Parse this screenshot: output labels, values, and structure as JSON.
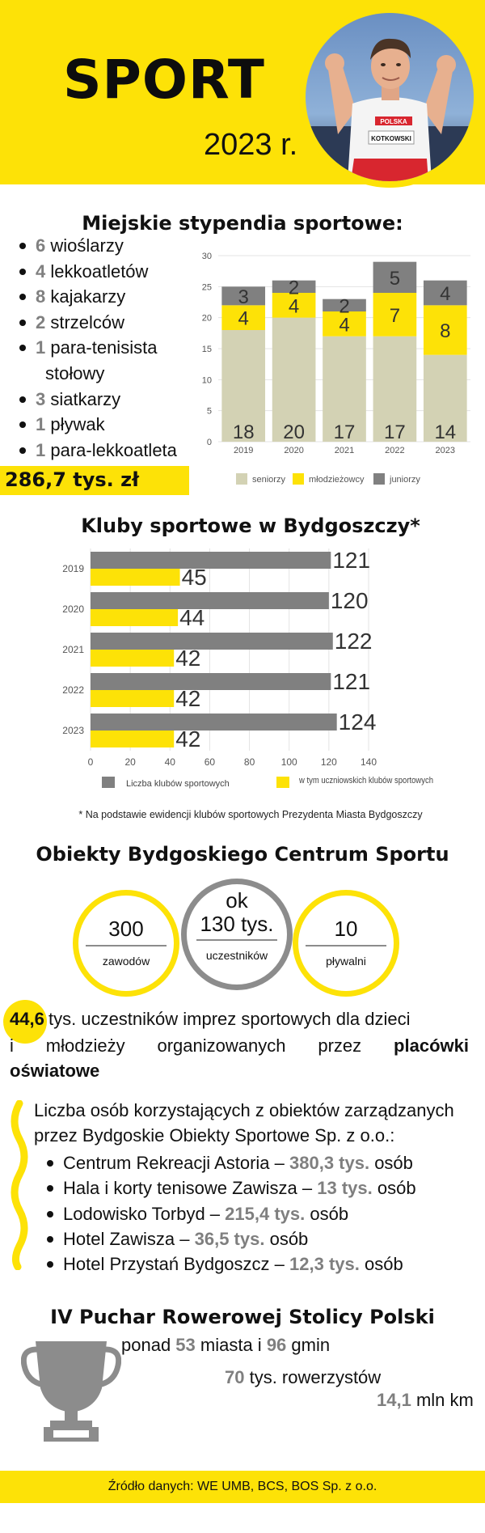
{
  "header": {
    "title": "SPORT",
    "year": "2023 r.",
    "photo_bib": "KOTKOWSKI",
    "photo_shirt": "POLSKA"
  },
  "scholarships": {
    "title": "Miejskie stypendia sportowe:",
    "items": [
      {
        "num": "6",
        "text": " wioślarzy"
      },
      {
        "num": "4",
        "text": " lekkoatletów"
      },
      {
        "num": "8",
        "text": " kajakarzy"
      },
      {
        "num": "2",
        "text": " strzelców"
      },
      {
        "num": "1",
        "text": " para-tenisista",
        "text2": "stołowy"
      },
      {
        "num": "3",
        "text": " siatkarzy"
      },
      {
        "num": "1",
        "text": " pływak"
      },
      {
        "num": "1",
        "text": " para-lekkoatleta"
      }
    ],
    "amount": "286,7 tys. zł"
  },
  "clubs": {
    "title": "Kluby sportowe w Bydgoszczy*",
    "footnote": "* Na podstawie ewidencji klubów sportowych Prezydenta Miasta Bydgoszczy"
  },
  "bob": {
    "title": "Obiekty Bydgoskiego Centrum Sportu",
    "circles": [
      {
        "prefix": "",
        "value": "300",
        "label": "zawodów"
      },
      {
        "prefix": "ok",
        "value": "130 tys.",
        "label": "uczestników"
      },
      {
        "prefix": "",
        "value": "10",
        "label": "pływalni"
      }
    ],
    "participants_num": "44,6",
    "participants_line1": " tys. uczestników  imprez  sportowych dla  dzieci",
    "participants_line2_a": "i",
    "participants_line2_b": "młodzieży",
    "participants_line2_c": "organizowanych",
    "participants_line2_d": "przez",
    "participants_line2_e": "placówki",
    "participants_line3": "oświatowe"
  },
  "bos": {
    "intro_1": "Liczba osób korzystających z obiektów zarządzanych",
    "intro_2": "przez Bydgoskie Obiekty Sportowe Sp. z o.o.:",
    "items": [
      {
        "name": "Centrum Rekreacji Astoria – ",
        "value": "380,3 tys.",
        "unit": " osób"
      },
      {
        "name": "Hala i korty tenisowe Zawisza – ",
        "value": "13 tys.",
        "unit": " osób"
      },
      {
        "name": "Lodowisko Torbyd – ",
        "value": "215,4 tys.",
        "unit": " osób"
      },
      {
        "name": "Hotel Zawisza – ",
        "value": "36,5 tys.",
        "unit": " osób"
      },
      {
        "name": "Hotel Przystań Bydgoszcz – ",
        "value": "12,3 tys.",
        "unit": " osób"
      }
    ]
  },
  "cup": {
    "title": "IV Puchar Rowerowej Stolicy Polski",
    "line1_a": "ponad ",
    "line1_n1": "53",
    "line1_b": " miasta i ",
    "line1_n2": "96",
    "line1_c": " gmin",
    "line2_n": "70",
    "line2_t": " tys. rowerzystów",
    "line3_n": "14,1",
    "line3_t": " mln km"
  },
  "footer": {
    "source": "Źródło danych: WE UMB, BCS, BOS Sp. z o.o."
  },
  "colors": {
    "yellow": "#fde207",
    "gray": "#808080",
    "beige": "#d3d2b4",
    "dark": "#111111"
  },
  "chart_data": [
    {
      "type": "bar",
      "stacked": true,
      "categories": [
        "2019",
        "2020",
        "2021",
        "2022",
        "2023"
      ],
      "series": [
        {
          "name": "seniorzy",
          "color": "#d3d2b4",
          "values": [
            18,
            20,
            17,
            17,
            14
          ]
        },
        {
          "name": "młodzieżowcy",
          "color": "#fde207",
          "values": [
            4,
            4,
            4,
            7,
            8
          ]
        },
        {
          "name": "juniorzy",
          "color": "#808080",
          "values": [
            3,
            2,
            2,
            5,
            4
          ]
        }
      ],
      "ylim": [
        0,
        30
      ],
      "yticks": [
        0,
        5,
        10,
        15,
        20,
        25,
        30
      ],
      "grid": true,
      "legend": "bottom"
    },
    {
      "type": "bar",
      "orientation": "horizontal",
      "categories": [
        "2019",
        "2020",
        "2021",
        "2022",
        "2023"
      ],
      "series": [
        {
          "name": "Liczba klubów sportowych",
          "color": "#808080",
          "values": [
            121,
            120,
            122,
            121,
            124
          ]
        },
        {
          "name": "w tym uczniowskich klubów sportowych",
          "color": "#fde207",
          "values": [
            45,
            44,
            42,
            42,
            42
          ]
        }
      ],
      "xlim": [
        0,
        140
      ],
      "xticks": [
        0,
        20,
        40,
        60,
        80,
        100,
        120,
        140
      ],
      "grid": true,
      "legend": "bottom"
    }
  ]
}
